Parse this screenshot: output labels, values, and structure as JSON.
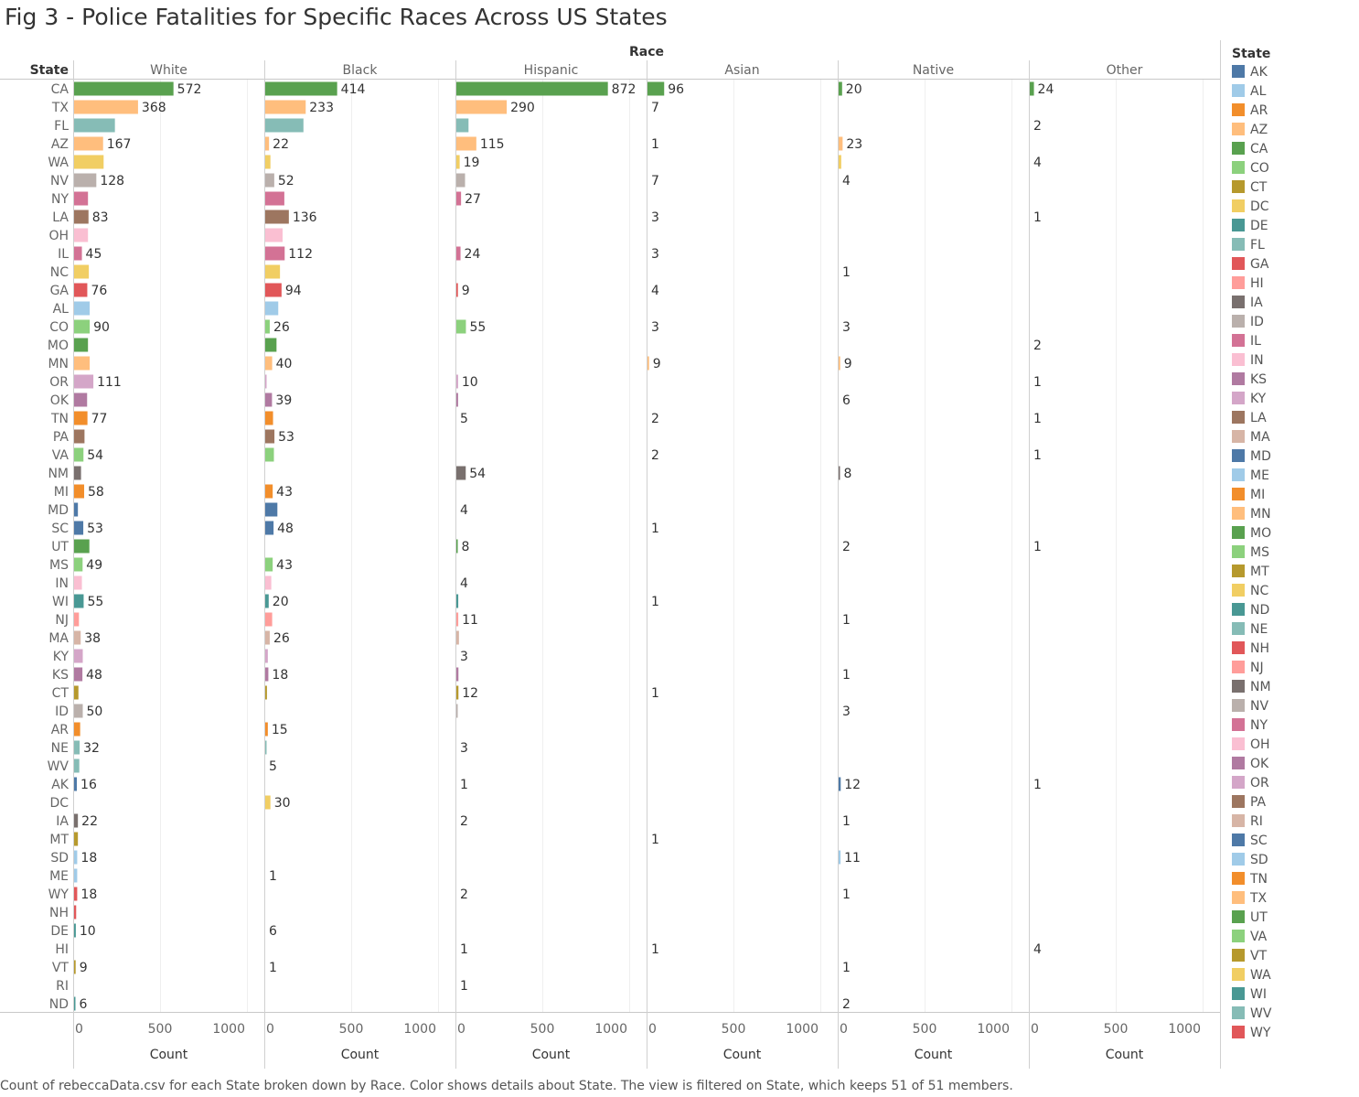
{
  "title": "Fig 3 - Police Fatalities for Specific Races Across US States",
  "footnote": "Count of rebeccaData.csv for each State broken down by Race.  Color shows details about State. The view is filtered on State, which keeps 51 of 51 members.",
  "chart_data": {
    "type": "bar",
    "orientation": "horizontal",
    "column_header": "Race",
    "row_header": "State",
    "xlabel": "Count",
    "xlim": [
      0,
      1000
    ],
    "x_ticks": [
      "0",
      "500",
      "1000"
    ],
    "grid": true,
    "legend_position": "right",
    "legend_title": "State",
    "races": [
      "White",
      "Black",
      "Hispanic",
      "Asian",
      "Native",
      "Other"
    ],
    "states": [
      "CA",
      "TX",
      "FL",
      "AZ",
      "WA",
      "NV",
      "NY",
      "LA",
      "OH",
      "IL",
      "NC",
      "GA",
      "AL",
      "CO",
      "MO",
      "MN",
      "OR",
      "OK",
      "TN",
      "PA",
      "VA",
      "NM",
      "MI",
      "MD",
      "SC",
      "UT",
      "MS",
      "IN",
      "WI",
      "NJ",
      "MA",
      "KY",
      "KS",
      "CT",
      "ID",
      "AR",
      "NE",
      "WV",
      "AK",
      "DC",
      "IA",
      "MT",
      "SD",
      "ME",
      "WY",
      "NH",
      "DE",
      "HI",
      "VT",
      "RI",
      "ND"
    ],
    "series": [
      {
        "name": "White",
        "values": [
          572,
          368,
          235,
          167,
          170,
          128,
          80,
          83,
          80,
          45,
          85,
          76,
          90,
          90,
          80,
          90,
          111,
          75,
          77,
          60,
          54,
          40,
          58,
          22,
          53,
          88,
          49,
          45,
          55,
          28,
          38,
          50,
          48,
          25,
          50,
          35,
          32,
          30,
          16,
          null,
          22,
          22,
          18,
          18,
          18,
          12,
          10,
          null,
          9,
          null,
          6
        ],
        "labels": [
          "572",
          "368",
          "",
          "167",
          "",
          "128",
          "",
          "83",
          "",
          "45",
          "",
          "76",
          "",
          "90",
          "",
          "",
          "111",
          "",
          "77",
          "",
          "54",
          "",
          "58",
          "",
          "53",
          "",
          "49",
          "",
          "55",
          "",
          "38",
          "",
          "48",
          "",
          "50",
          "",
          "32",
          "",
          "16",
          "",
          "22",
          "",
          "18",
          "",
          "18",
          "",
          "10",
          "",
          "9",
          "",
          "6"
        ]
      },
      {
        "name": "Black",
        "values": [
          414,
          233,
          220,
          22,
          30,
          52,
          110,
          136,
          100,
          112,
          85,
          94,
          75,
          26,
          65,
          40,
          5,
          39,
          45,
          53,
          50,
          null,
          43,
          70,
          48,
          null,
          43,
          35,
          20,
          40,
          26,
          15,
          18,
          10,
          null,
          15,
          5,
          5,
          null,
          30,
          null,
          null,
          null,
          1,
          null,
          null,
          6,
          null,
          1,
          null,
          null
        ],
        "labels": [
          "414",
          "233",
          "",
          "22",
          "",
          "52",
          "",
          "136",
          "",
          "112",
          "",
          "94",
          "",
          "26",
          "",
          "40",
          "",
          "39",
          "",
          "53",
          "",
          "",
          "43",
          "",
          "48",
          "",
          "43",
          "",
          "20",
          "",
          "26",
          "",
          "18",
          "",
          "",
          "15",
          "",
          "5",
          "",
          "30",
          "",
          "",
          "",
          "1",
          "",
          "",
          "6",
          "",
          "1",
          "",
          ""
        ],
        "label_only": [
          false,
          false,
          false,
          false,
          false,
          false,
          false,
          false,
          false,
          false,
          false,
          false,
          false,
          false,
          false,
          false,
          false,
          false,
          false,
          false,
          false,
          false,
          false,
          false,
          false,
          false,
          false,
          false,
          false,
          false,
          false,
          false,
          false,
          false,
          false,
          false,
          false,
          true,
          false,
          false,
          false,
          false,
          false,
          true,
          false,
          false,
          true,
          false,
          true,
          false,
          false
        ]
      },
      {
        "name": "Hispanic",
        "values": [
          872,
          290,
          70,
          115,
          19,
          50,
          27,
          null,
          null,
          24,
          null,
          9,
          null,
          55,
          null,
          null,
          10,
          10,
          5,
          null,
          null,
          54,
          null,
          4,
          null,
          8,
          null,
          4,
          11,
          11,
          15,
          3,
          12,
          12,
          5,
          null,
          3,
          null,
          1,
          null,
          2,
          null,
          null,
          null,
          2,
          null,
          null,
          1,
          null,
          1,
          null
        ],
        "labels": [
          "872",
          "290",
          "",
          "115",
          "19",
          "",
          "27",
          "",
          "",
          "24",
          "",
          "9",
          "",
          "55",
          "",
          "",
          "10",
          "",
          "5",
          "",
          "",
          "54",
          "",
          "4",
          "",
          "8",
          "",
          "4",
          "",
          "11",
          "",
          "3",
          "",
          "12",
          "",
          "",
          "3",
          "",
          "1",
          "",
          "2",
          "",
          "",
          "",
          "2",
          "",
          "",
          "1",
          "",
          "1",
          ""
        ],
        "label_only": [
          false,
          false,
          false,
          false,
          false,
          false,
          false,
          false,
          false,
          false,
          false,
          false,
          false,
          false,
          false,
          false,
          false,
          false,
          true,
          false,
          false,
          false,
          false,
          true,
          false,
          false,
          false,
          true,
          false,
          false,
          false,
          true,
          false,
          false,
          false,
          false,
          true,
          false,
          true,
          false,
          true,
          false,
          false,
          false,
          true,
          false,
          false,
          true,
          false,
          true,
          false
        ]
      },
      {
        "name": "Asian",
        "values": [
          96,
          7,
          null,
          1,
          null,
          7,
          null,
          3,
          null,
          3,
          null,
          4,
          null,
          3,
          null,
          9,
          null,
          null,
          2,
          null,
          2,
          null,
          null,
          null,
          1,
          null,
          null,
          null,
          1,
          null,
          null,
          null,
          null,
          1,
          null,
          null,
          null,
          null,
          null,
          null,
          null,
          1,
          null,
          null,
          null,
          null,
          null,
          1,
          null,
          null,
          null
        ],
        "labels": [
          "96",
          "7",
          "",
          "1",
          "",
          "7",
          "",
          "3",
          "",
          "3",
          "",
          "4",
          "",
          "3",
          "",
          "9",
          "",
          "",
          "2",
          "",
          "2",
          "",
          "",
          "",
          "1",
          "",
          "",
          "",
          "1",
          "",
          "",
          "",
          "",
          "1",
          "",
          "",
          "",
          "",
          "",
          "",
          "",
          "1",
          "",
          "",
          "",
          "",
          "",
          "1",
          "",
          "",
          ""
        ],
        "label_only": [
          false,
          true,
          false,
          true,
          false,
          true,
          false,
          true,
          false,
          true,
          false,
          true,
          false,
          true,
          false,
          false,
          false,
          false,
          true,
          false,
          true,
          false,
          false,
          false,
          true,
          false,
          false,
          false,
          true,
          false,
          false,
          false,
          false,
          true,
          false,
          false,
          false,
          false,
          false,
          false,
          false,
          true,
          false,
          false,
          false,
          false,
          false,
          true,
          false,
          false,
          false
        ]
      },
      {
        "name": "Native",
        "values": [
          20,
          null,
          null,
          23,
          15,
          4,
          null,
          null,
          null,
          null,
          1,
          null,
          null,
          3,
          null,
          9,
          null,
          6,
          null,
          null,
          null,
          8,
          null,
          null,
          null,
          2,
          null,
          null,
          null,
          1,
          null,
          null,
          1,
          null,
          3,
          null,
          null,
          null,
          12,
          null,
          1,
          null,
          11,
          null,
          1,
          null,
          null,
          null,
          1,
          null,
          2
        ],
        "labels": [
          "20",
          "",
          "",
          "23",
          "",
          "4",
          "",
          "",
          "",
          "",
          "1",
          "",
          "",
          "3",
          "",
          "9",
          "",
          "6",
          "",
          "",
          "",
          "8",
          "",
          "",
          "",
          "2",
          "",
          "",
          "",
          "1",
          "",
          "",
          "1",
          "",
          "3",
          "",
          "",
          "",
          "12",
          "",
          "1",
          "",
          "11",
          "",
          "1",
          "",
          "",
          "",
          "1",
          "",
          "2"
        ],
        "label_only": [
          false,
          false,
          false,
          false,
          false,
          true,
          false,
          false,
          false,
          false,
          true,
          false,
          false,
          true,
          false,
          false,
          false,
          true,
          false,
          false,
          false,
          false,
          false,
          false,
          false,
          true,
          false,
          false,
          false,
          true,
          false,
          false,
          true,
          false,
          true,
          false,
          false,
          false,
          false,
          false,
          true,
          false,
          false,
          false,
          true,
          false,
          false,
          false,
          true,
          false,
          true
        ]
      },
      {
        "name": "Other",
        "values": [
          24,
          null,
          2,
          null,
          4,
          null,
          null,
          1,
          null,
          null,
          null,
          null,
          null,
          null,
          2,
          null,
          1,
          null,
          1,
          null,
          1,
          null,
          null,
          null,
          null,
          1,
          null,
          null,
          null,
          null,
          null,
          null,
          null,
          null,
          null,
          null,
          null,
          null,
          1,
          null,
          null,
          null,
          null,
          null,
          null,
          null,
          null,
          4,
          null,
          null,
          null
        ],
        "labels": [
          "24",
          "",
          "2",
          "",
          "4",
          "",
          "",
          "1",
          "",
          "",
          "",
          "",
          "",
          "",
          "2",
          "",
          "1",
          "",
          "1",
          "",
          "1",
          "",
          "",
          "",
          "",
          "1",
          "",
          "",
          "",
          "",
          "",
          "",
          "",
          "",
          "",
          "",
          "",
          "",
          "1",
          "",
          "",
          "",
          "",
          "",
          "",
          "",
          "",
          "4",
          "",
          "",
          ""
        ],
        "label_only": [
          false,
          false,
          true,
          false,
          true,
          false,
          false,
          true,
          false,
          false,
          false,
          false,
          false,
          false,
          true,
          false,
          true,
          false,
          true,
          false,
          true,
          false,
          false,
          false,
          false,
          true,
          false,
          false,
          false,
          false,
          false,
          false,
          false,
          false,
          false,
          false,
          false,
          false,
          true,
          false,
          false,
          false,
          false,
          false,
          false,
          false,
          false,
          true,
          false,
          false,
          false
        ]
      }
    ]
  },
  "legend": {
    "title": "State",
    "items": [
      {
        "label": "AK",
        "color": "#4e79a7"
      },
      {
        "label": "AL",
        "color": "#a0cbe8"
      },
      {
        "label": "AR",
        "color": "#f28e2b"
      },
      {
        "label": "AZ",
        "color": "#ffbe7d"
      },
      {
        "label": "CA",
        "color": "#59a14f"
      },
      {
        "label": "CO",
        "color": "#8cd17d"
      },
      {
        "label": "CT",
        "color": "#b6992d"
      },
      {
        "label": "DC",
        "color": "#f1ce63"
      },
      {
        "label": "DE",
        "color": "#499894"
      },
      {
        "label": "FL",
        "color": "#86bcb6"
      },
      {
        "label": "GA",
        "color": "#e15759"
      },
      {
        "label": "HI",
        "color": "#ff9d9a"
      },
      {
        "label": "IA",
        "color": "#79706e"
      },
      {
        "label": "ID",
        "color": "#bab0ac"
      },
      {
        "label": "IL",
        "color": "#d37295"
      },
      {
        "label": "IN",
        "color": "#fabfd2"
      },
      {
        "label": "KS",
        "color": "#b07aa1"
      },
      {
        "label": "KY",
        "color": "#d4a6c8"
      },
      {
        "label": "LA",
        "color": "#9d7660"
      },
      {
        "label": "MA",
        "color": "#d7b5a6"
      },
      {
        "label": "MD",
        "color": "#4e79a7"
      },
      {
        "label": "ME",
        "color": "#a0cbe8"
      },
      {
        "label": "MI",
        "color": "#f28e2b"
      },
      {
        "label": "MN",
        "color": "#ffbe7d"
      },
      {
        "label": "MO",
        "color": "#59a14f"
      },
      {
        "label": "MS",
        "color": "#8cd17d"
      },
      {
        "label": "MT",
        "color": "#b6992d"
      },
      {
        "label": "NC",
        "color": "#f1ce63"
      },
      {
        "label": "ND",
        "color": "#499894"
      },
      {
        "label": "NE",
        "color": "#86bcb6"
      },
      {
        "label": "NH",
        "color": "#e15759"
      },
      {
        "label": "NJ",
        "color": "#ff9d9a"
      },
      {
        "label": "NM",
        "color": "#79706e"
      },
      {
        "label": "NV",
        "color": "#bab0ac"
      },
      {
        "label": "NY",
        "color": "#d37295"
      },
      {
        "label": "OH",
        "color": "#fabfd2"
      },
      {
        "label": "OK",
        "color": "#b07aa1"
      },
      {
        "label": "OR",
        "color": "#d4a6c8"
      },
      {
        "label": "PA",
        "color": "#9d7660"
      },
      {
        "label": "RI",
        "color": "#d7b5a6"
      },
      {
        "label": "SC",
        "color": "#4e79a7"
      },
      {
        "label": "SD",
        "color": "#a0cbe8"
      },
      {
        "label": "TN",
        "color": "#f28e2b"
      },
      {
        "label": "TX",
        "color": "#ffbe7d"
      },
      {
        "label": "UT",
        "color": "#59a14f"
      },
      {
        "label": "VA",
        "color": "#8cd17d"
      },
      {
        "label": "VT",
        "color": "#b6992d"
      },
      {
        "label": "WA",
        "color": "#f1ce63"
      },
      {
        "label": "WI",
        "color": "#499894"
      },
      {
        "label": "WV",
        "color": "#86bcb6"
      },
      {
        "label": "WY",
        "color": "#e15759"
      }
    ]
  }
}
